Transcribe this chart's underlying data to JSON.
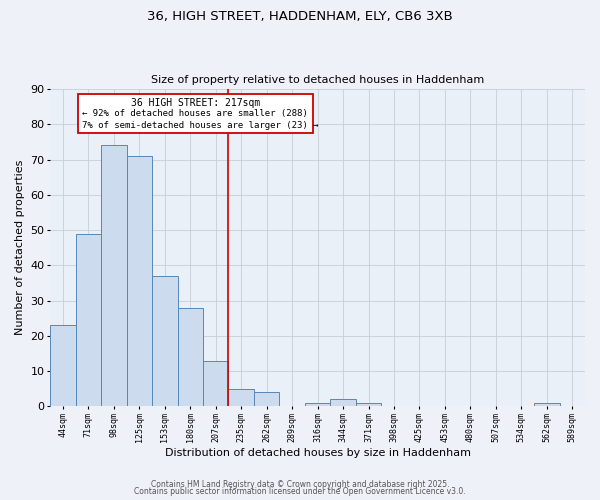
{
  "title": "36, HIGH STREET, HADDENHAM, ELY, CB6 3XB",
  "subtitle": "Size of property relative to detached houses in Haddenham",
  "xlabel": "Distribution of detached houses by size in Haddenham",
  "ylabel": "Number of detached properties",
  "categories": [
    "44sqm",
    "71sqm",
    "98sqm",
    "125sqm",
    "153sqm",
    "180sqm",
    "207sqm",
    "235sqm",
    "262sqm",
    "289sqm",
    "316sqm",
    "344sqm",
    "371sqm",
    "398sqm",
    "425sqm",
    "453sqm",
    "480sqm",
    "507sqm",
    "534sqm",
    "562sqm",
    "589sqm"
  ],
  "values": [
    23,
    49,
    74,
    71,
    37,
    28,
    13,
    5,
    4,
    0,
    1,
    2,
    1,
    0,
    0,
    0,
    0,
    0,
    0,
    1,
    0
  ],
  "bar_color": "#ccdcee",
  "bar_edge_color": "#5588bb",
  "vline_color": "#cc0000",
  "annotation_title": "36 HIGH STREET: 217sqm",
  "annotation_line1": "← 92% of detached houses are smaller (288)",
  "annotation_line2": "7% of semi-detached houses are larger (23) →",
  "annotation_box_color": "#cc0000",
  "ylim": [
    0,
    90
  ],
  "yticks": [
    0,
    10,
    20,
    30,
    40,
    50,
    60,
    70,
    80,
    90
  ],
  "bg_color": "#eef1f8",
  "plot_bg_color": "#eaf0f8",
  "grid_color": "#c8cdd8",
  "footer1": "Contains HM Land Registry data © Crown copyright and database right 2025.",
  "footer2": "Contains public sector information licensed under the Open Government Licence v3.0."
}
